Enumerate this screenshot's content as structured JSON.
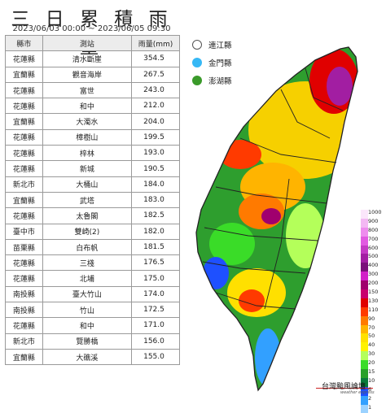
{
  "title": "三 日 累 積 雨 量",
  "subtitle": "2023/06/03 00:00 ~ 2023/06/05 09:30",
  "table": {
    "headers": [
      "縣市",
      "測站",
      "雨量(mm)"
    ],
    "rows": [
      [
        "花蓮縣",
        "清水斷崖",
        "354.5"
      ],
      [
        "宜蘭縣",
        "觀音海岸",
        "267.5"
      ],
      [
        "花蓮縣",
        "富世",
        "243.0"
      ],
      [
        "花蓮縣",
        "和中",
        "212.0"
      ],
      [
        "宜蘭縣",
        "大濁水",
        "204.0"
      ],
      [
        "花蓮縣",
        "樟樹山",
        "199.5"
      ],
      [
        "花蓮縣",
        "梓林",
        "193.0"
      ],
      [
        "花蓮縣",
        "新城",
        "190.5"
      ],
      [
        "新北市",
        "大桶山",
        "184.0"
      ],
      [
        "宜蘭縣",
        "武塔",
        "183.0"
      ],
      [
        "花蓮縣",
        "太魯閣",
        "182.5"
      ],
      [
        "臺中市",
        "雙崎(2)",
        "182.0"
      ],
      [
        "苗栗縣",
        "白布帆",
        "181.5"
      ],
      [
        "花蓮縣",
        "三棧",
        "176.5"
      ],
      [
        "花蓮縣",
        "北埔",
        "175.0"
      ],
      [
        "南投縣",
        "臺大竹山",
        "174.0"
      ],
      [
        "南投縣",
        "竹山",
        "172.5"
      ],
      [
        "花蓮縣",
        "和中",
        "171.0"
      ],
      [
        "新北市",
        "覽勝橋",
        "156.0"
      ],
      [
        "宜蘭縣",
        "大礁溪",
        "155.0"
      ]
    ]
  },
  "islands": [
    {
      "label": "連江縣",
      "color": "#ffffff"
    },
    {
      "label": "金門縣",
      "color": "#36b8f5"
    },
    {
      "label": "澎湖縣",
      "color": "#3a9a2a"
    }
  ],
  "scale": {
    "labels": [
      "1000",
      "900",
      "800",
      "700",
      "600",
      "500",
      "400",
      "300",
      "200",
      "150",
      "130",
      "110",
      "90",
      "70",
      "50",
      "40",
      "30",
      "20",
      "15",
      "10",
      "6",
      "2",
      "1"
    ],
    "colors": [
      "#fbe6fb",
      "#f3b8f3",
      "#ee8cee",
      "#e15ae1",
      "#c43ac4",
      "#a21ea2",
      "#7a0e7a",
      "#d21fc8",
      "#a0006e",
      "#c8006e",
      "#e00000",
      "#ff3a00",
      "#ff7a00",
      "#ffb400",
      "#ffe000",
      "#fff200",
      "#b4ff5a",
      "#3adc28",
      "#28a028",
      "#0a7a3a",
      "#1e50ff",
      "#32a0ff",
      "#9bd2ff"
    ]
  },
  "brand": {
    "name": "台灣颱風論壇",
    "sub": "weather express"
  }
}
